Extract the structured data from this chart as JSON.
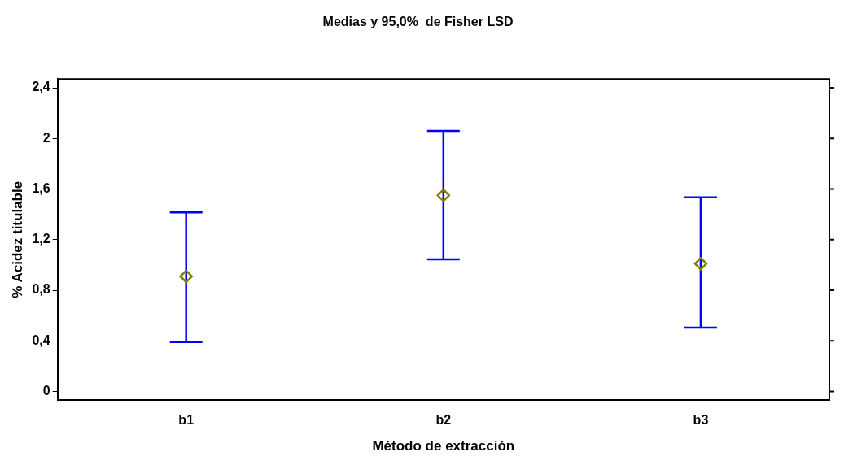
{
  "chart_data": {
    "type": "scatter",
    "title": "Medias y 95,0%  de Fisher LSD",
    "xlabel": "Método de extracción",
    "ylabel": "% Acidez titulable",
    "categories": [
      "b1",
      "b2",
      "b3"
    ],
    "series": [
      {
        "color": "#808000",
        "values": [
          0.91,
          1.55,
          1.01
        ],
        "errors": [
          [
            0.39,
            1.415
          ],
          [
            1.045,
            2.06
          ],
          [
            0.505,
            1.535
          ]
        ]
      }
    ],
    "ylim": [
      -0.07,
      2.47
    ],
    "yticks": [
      {
        "value": 0,
        "label": "0"
      },
      {
        "value": 0.4,
        "label": "0,4"
      },
      {
        "value": 0.8,
        "label": "0,8"
      },
      {
        "value": 1.2,
        "label": "1,2"
      },
      {
        "value": 1.6,
        "label": "1,6"
      },
      {
        "value": 2,
        "label": "2"
      },
      {
        "value": 2.4,
        "label": "2,4"
      }
    ],
    "marker": "diamond",
    "grid": false,
    "legend": false
  }
}
